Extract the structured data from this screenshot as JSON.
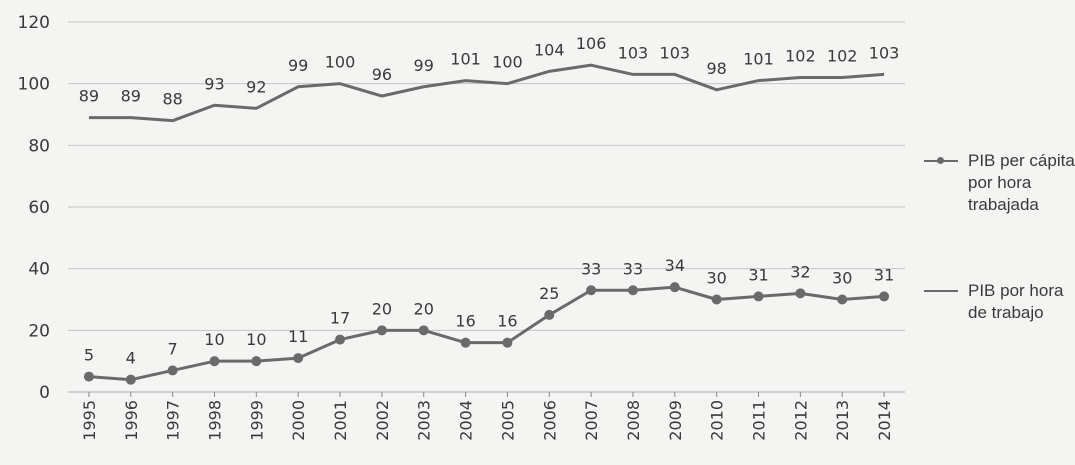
{
  "chart_data": {
    "type": "line",
    "title": "",
    "xlabel": "",
    "ylabel": "",
    "x": [
      "1995",
      "1996",
      "1997",
      "1998",
      "1999",
      "2000",
      "2001",
      "2002",
      "2003",
      "2004",
      "2005",
      "2006",
      "2007",
      "2008",
      "2009",
      "2010",
      "2011",
      "2012",
      "2013",
      "2014"
    ],
    "ylim": [
      0,
      120
    ],
    "yticks": [
      "0",
      "20",
      "40",
      "60",
      "80",
      "100",
      "120"
    ],
    "grid": true,
    "legend_position": "right",
    "series": [
      {
        "name": "PIB per cápita por hora trabajada",
        "marker": "dot",
        "values": [
          5,
          4,
          7,
          10,
          10,
          11,
          17,
          20,
          20,
          16,
          16,
          25,
          33,
          33,
          34,
          30,
          31,
          32,
          30,
          31
        ],
        "labels": [
          "5",
          "4",
          "7",
          "10",
          "10",
          "11",
          "17",
          "20",
          "20",
          "16",
          "16",
          "25",
          "33",
          "33",
          "34",
          "30",
          "31",
          "32",
          "30",
          "31"
        ]
      },
      {
        "name": "PIB por hora de trabajo",
        "marker": "none",
        "values": [
          89,
          89,
          88,
          93,
          92,
          99,
          100,
          96,
          99,
          101,
          100,
          104,
          106,
          103,
          103,
          98,
          101,
          102,
          102,
          103
        ],
        "labels": [
          "89",
          "89",
          "88",
          "93",
          "92",
          "99",
          "100",
          "96",
          "99",
          "101",
          "100",
          "104",
          "106",
          "103",
          "103",
          "98",
          "101",
          "102",
          "102",
          "103"
        ]
      }
    ],
    "colors": {
      "line": "#6a6a6a",
      "grid": "#c4c4c4",
      "text": "#3a3a3a"
    }
  },
  "legend": {
    "item1": "PIB per cápita por hora trabajada",
    "item2": "PIB por hora de trabajo"
  }
}
